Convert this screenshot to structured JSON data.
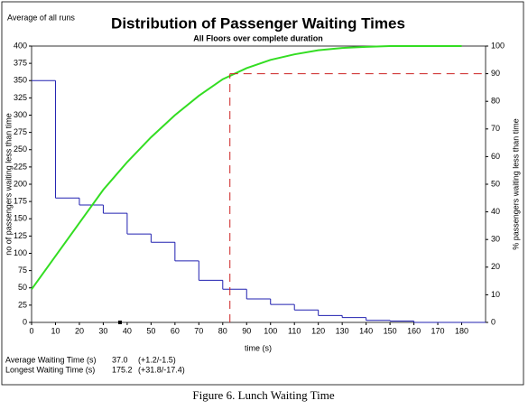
{
  "chart_data": {
    "type": "histogram",
    "title": "Distribution of Passenger Waiting Times",
    "subtitle": "All Floors over complete duration",
    "note": "Average of all runs",
    "x_label": "time (s)",
    "y_label": "no of passengers waiting less than time",
    "y2_label": "% passengers waiting less than time",
    "bins": [
      0,
      10,
      20,
      30,
      40,
      50,
      60,
      70,
      80,
      90,
      100,
      110,
      120,
      130,
      140,
      150,
      160,
      170,
      180,
      190
    ],
    "counts": [
      350,
      180,
      170,
      158,
      128,
      116,
      89,
      61,
      48,
      34,
      26,
      18,
      10,
      7,
      3,
      2,
      0,
      0,
      0
    ],
    "color": "#2020b0",
    "series": [
      {
        "name": "% passengers waiting less than time",
        "color": "#33dd22",
        "axis": "y2",
        "x": [
          0,
          10,
          20,
          30,
          40,
          50,
          60,
          70,
          80,
          90,
          100,
          110,
          120,
          130,
          140,
          150,
          160,
          170,
          180
        ],
        "values": [
          12,
          24,
          36,
          48,
          58,
          67,
          75,
          82,
          88,
          92,
          95,
          97,
          98.5,
          99.3,
          99.7,
          100,
          100,
          100,
          100
        ]
      }
    ],
    "reference": {
      "x": 83,
      "y2": 90,
      "color": "#cc2222"
    },
    "xlim": [
      0,
      190
    ],
    "xticks": [
      0,
      10,
      20,
      30,
      40,
      50,
      60,
      70,
      80,
      90,
      100,
      110,
      120,
      130,
      140,
      150,
      160,
      170,
      180
    ],
    "ylim": [
      0,
      400
    ],
    "yticks": [
      0,
      25,
      50,
      75,
      100,
      125,
      150,
      175,
      200,
      225,
      250,
      275,
      300,
      325,
      350,
      375,
      400
    ],
    "y2lim": [
      0,
      100
    ],
    "y2ticks": [
      0,
      10,
      20,
      30,
      40,
      50,
      60,
      70,
      80,
      90,
      100
    ],
    "stats": [
      {
        "label": "Average Waiting Time (s)",
        "value": 37,
        "value_label": "37.0",
        "range": "(+1.2/-1.5)"
      },
      {
        "label": "Longest Waiting Time (s)",
        "value": 175.2,
        "range": "(+31.8/-17.4)"
      }
    ]
  },
  "caption": "Figure 6. Lunch Waiting Time"
}
